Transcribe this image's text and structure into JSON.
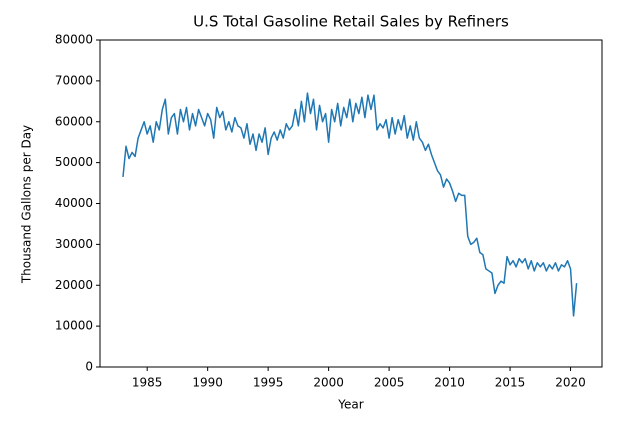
{
  "chart_data": {
    "type": "line",
    "title": "U.S Total Gasoline Retail Sales by Refiners",
    "x_label": "Year",
    "y_label": "Thousand Gallons per Day",
    "xlim": [
      1981.1,
      2022.6
    ],
    "ylim": [
      0,
      80000
    ],
    "xticks": [
      1985,
      1990,
      1995,
      2000,
      2005,
      2010,
      2015,
      2020
    ],
    "yticks": [
      0,
      10000,
      20000,
      30000,
      40000,
      50000,
      60000,
      70000,
      80000
    ],
    "grid": false,
    "x": [
      1983,
      1983.25,
      1983.5,
      1983.75,
      1984,
      1984.25,
      1984.5,
      1984.75,
      1985,
      1985.25,
      1985.5,
      1985.75,
      1986,
      1986.25,
      1986.5,
      1986.75,
      1987,
      1987.25,
      1987.5,
      1987.75,
      1988,
      1988.25,
      1988.5,
      1988.75,
      1989,
      1989.25,
      1989.5,
      1989.75,
      1990,
      1990.25,
      1990.5,
      1990.75,
      1991,
      1991.25,
      1991.5,
      1991.75,
      1992,
      1992.25,
      1992.5,
      1992.75,
      1993,
      1993.25,
      1993.5,
      1993.75,
      1994,
      1994.25,
      1994.5,
      1994.75,
      1995,
      1995.25,
      1995.5,
      1995.75,
      1996,
      1996.25,
      1996.5,
      1996.75,
      1997,
      1997.25,
      1997.5,
      1997.75,
      1998,
      1998.25,
      1998.5,
      1998.75,
      1999,
      1999.25,
      1999.5,
      1999.75,
      2000,
      2000.25,
      2000.5,
      2000.75,
      2001,
      2001.25,
      2001.5,
      2001.75,
      2002,
      2002.25,
      2002.5,
      2002.75,
      2003,
      2003.25,
      2003.5,
      2003.75,
      2004,
      2004.25,
      2004.5,
      2004.75,
      2005,
      2005.25,
      2005.5,
      2005.75,
      2006,
      2006.25,
      2006.5,
      2006.75,
      2007,
      2007.25,
      2007.5,
      2007.75,
      2008,
      2008.25,
      2008.5,
      2008.75,
      2009,
      2009.25,
      2009.5,
      2009.75,
      2010,
      2010.25,
      2010.5,
      2010.75,
      2011,
      2011.25,
      2011.5,
      2011.75,
      2012,
      2012.25,
      2012.5,
      2012.75,
      2013,
      2013.25,
      2013.5,
      2013.75,
      2014,
      2014.25,
      2014.5,
      2014.75,
      2015,
      2015.25,
      2015.5,
      2015.75,
      2016,
      2016.25,
      2016.5,
      2016.75,
      2017,
      2017.25,
      2017.5,
      2017.75,
      2018,
      2018.25,
      2018.5,
      2018.75,
      2019,
      2019.25,
      2019.5,
      2019.75,
      2020,
      2020.25,
      2020.5
    ],
    "series": [
      {
        "color": "#1f77b4",
        "values": [
          46500,
          54000,
          51000,
          52500,
          51500,
          56000,
          58000,
          60000,
          57000,
          59000,
          55000,
          60000,
          58000,
          63000,
          65500,
          57000,
          61000,
          62000,
          57000,
          63000,
          60000,
          63500,
          58000,
          62000,
          59000,
          63000,
          61000,
          59000,
          62000,
          60500,
          56000,
          63500,
          61000,
          62500,
          58000,
          60000,
          57500,
          61000,
          59000,
          58500,
          56000,
          59500,
          54500,
          57000,
          53000,
          57000,
          55000,
          58500,
          52000,
          56000,
          57500,
          55500,
          58000,
          56000,
          59500,
          58000,
          59000,
          63000,
          59000,
          65000,
          60000,
          67000,
          62000,
          65500,
          58000,
          64000,
          60000,
          62000,
          55000,
          63000,
          60000,
          64500,
          59000,
          63500,
          61000,
          65500,
          60000,
          64500,
          62000,
          66000,
          61000,
          66500,
          63000,
          66500,
          58000,
          59500,
          58500,
          60500,
          56000,
          61000,
          57000,
          60500,
          58000,
          61500,
          56000,
          59000,
          55500,
          60000,
          56000,
          55000,
          53000,
          54500,
          52000,
          50000,
          48000,
          47000,
          44000,
          46000,
          45000,
          43000,
          40500,
          42500,
          42000,
          42000,
          32000,
          30000,
          30500,
          31500,
          28000,
          27500,
          24000,
          23500,
          23000,
          18000,
          20000,
          21000,
          20500,
          27000,
          25000,
          26000,
          24500,
          26500,
          25500,
          26500,
          24000,
          26000,
          23500,
          25500,
          24500,
          25500,
          23500,
          25000,
          24000,
          25500,
          23500,
          25000,
          24500,
          26000,
          24000,
          12500,
          20500
        ]
      }
    ]
  }
}
